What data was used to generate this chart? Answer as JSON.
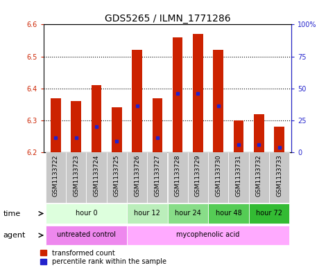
{
  "title": "GDS5265 / ILMN_1771286",
  "samples": [
    "GSM1133722",
    "GSM1133723",
    "GSM1133724",
    "GSM1133725",
    "GSM1133726",
    "GSM1133727",
    "GSM1133728",
    "GSM1133729",
    "GSM1133730",
    "GSM1133731",
    "GSM1133732",
    "GSM1133733"
  ],
  "bar_values": [
    6.37,
    6.36,
    6.41,
    6.34,
    6.52,
    6.37,
    6.56,
    6.57,
    6.52,
    6.3,
    6.32,
    6.28
  ],
  "percentile_values": [
    6.245,
    6.245,
    6.28,
    6.235,
    6.345,
    6.245,
    6.385,
    6.385,
    6.345,
    6.225,
    6.225,
    6.215
  ],
  "ymin": 6.2,
  "ymax": 6.6,
  "bar_color": "#cc2200",
  "percentile_color": "#2222cc",
  "background_color": "#ffffff",
  "plot_bg_color": "#ffffff",
  "time_groups": [
    {
      "label": "hour 0",
      "start": 0,
      "end": 3,
      "color": "#ddffdd"
    },
    {
      "label": "hour 12",
      "start": 4,
      "end": 5,
      "color": "#bbeebb"
    },
    {
      "label": "hour 24",
      "start": 6,
      "end": 7,
      "color": "#88dd88"
    },
    {
      "label": "hour 48",
      "start": 8,
      "end": 9,
      "color": "#55cc55"
    },
    {
      "label": "hour 72",
      "start": 10,
      "end": 11,
      "color": "#33bb33"
    }
  ],
  "agent_groups": [
    {
      "label": "untreated control",
      "start": 0,
      "end": 3,
      "color": "#ee88ee"
    },
    {
      "label": "mycophenolic acid",
      "start": 4,
      "end": 11,
      "color": "#ffaaff"
    }
  ],
  "left_axis_color": "#cc2200",
  "right_axis_color": "#2222cc",
  "right_ytick_labels": [
    "0",
    "25",
    "50",
    "75",
    "100%"
  ],
  "right_ytick_positions": [
    6.2,
    6.3,
    6.4,
    6.5,
    6.6
  ],
  "left_yticks": [
    6.2,
    6.3,
    6.4,
    6.5,
    6.6
  ],
  "grid_yticks": [
    6.3,
    6.4,
    6.5
  ],
  "title_fontsize": 10,
  "tick_fontsize": 7,
  "sample_fontsize": 6.5,
  "row_fontsize": 8
}
